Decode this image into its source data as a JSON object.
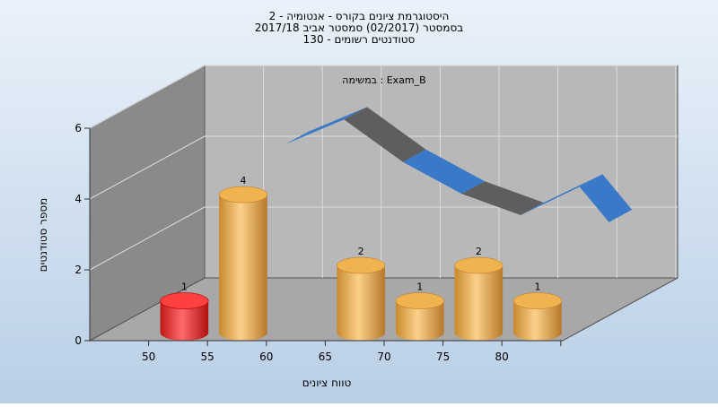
{
  "chart_data": {
    "type": "bar",
    "title_lines": [
      "היסטוגרמת ציונים בקורס - אנטומיה - 2",
      "בסמסטר  (02/2017)  סמסטר אביב 2017/18",
      "סטודנטים רשומים - 130"
    ],
    "inner_label": "במשימה : Exam_B",
    "xlabel": "טווח ציונים",
    "ylabel": "מספר סטודנטים",
    "x_ticks": [
      "50",
      "55",
      "60",
      "65",
      "70",
      "75",
      "80"
    ],
    "y_ticks": [
      0,
      2,
      4,
      6
    ],
    "ylim": [
      0,
      6
    ],
    "bars": [
      {
        "bin": "50-55",
        "value": 1,
        "label": "1",
        "highlight": true
      },
      {
        "bin": "55-60",
        "value": 4,
        "label": "4",
        "highlight": false
      },
      {
        "bin": "65-70",
        "value": 2,
        "label": "2",
        "highlight": false
      },
      {
        "bin": "70-75",
        "value": 1,
        "label": "1",
        "highlight": false
      },
      {
        "bin": "75-80",
        "value": 2,
        "label": "2",
        "highlight": false
      },
      {
        "bin": "80-85",
        "value": 1,
        "label": "1",
        "highlight": false
      }
    ],
    "curve": {
      "x": [
        57.5,
        62.5,
        67.5,
        72.5,
        77.5,
        82.5,
        85
      ],
      "y": [
        4.8,
        5.5,
        4.3,
        3.4,
        2.8,
        3.6,
        2.6
      ]
    },
    "grid": true,
    "colors": {
      "bar": "#e8a84a",
      "bar_highlight": "#e02020",
      "curve_front": "#3a78c8",
      "curve_back": "#5e5e5e",
      "wall": "#b8b8b8",
      "side_wall": "#8a8a8a",
      "floor": "#a8a8a8",
      "background": "#c6d8ec"
    }
  }
}
